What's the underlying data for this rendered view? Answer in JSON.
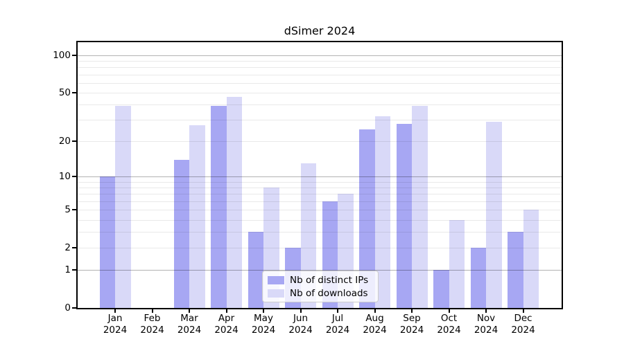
{
  "chart_data": {
    "type": "bar",
    "title": "dSimer 2024",
    "categories": [
      "Jan 2024",
      "Feb 2024",
      "Mar 2024",
      "Apr 2024",
      "May 2024",
      "Jun 2024",
      "Jul 2024",
      "Aug 2024",
      "Sep 2024",
      "Oct 2024",
      "Nov 2024",
      "Dec 2024"
    ],
    "series": [
      {
        "name": "Nb of distinct IPs",
        "color": "#a7a7f3",
        "values": [
          10,
          0,
          14,
          39,
          3,
          2,
          6,
          25,
          28,
          1,
          2,
          3
        ]
      },
      {
        "name": "Nb of downloads",
        "color": "#d9d9f8",
        "values": [
          39,
          0,
          27,
          46,
          8,
          13,
          7,
          32,
          39,
          4,
          29,
          5
        ]
      }
    ],
    "xlabel": "",
    "ylabel": "",
    "yscale": "log1p",
    "yticks": [
      0,
      1,
      2,
      5,
      10,
      20,
      50,
      100
    ],
    "ylim": [
      0,
      126
    ],
    "grid": true,
    "legend_position": "lower center inside"
  },
  "legend": {
    "items": [
      {
        "label": "Nb of distinct IPs",
        "color": "#a7a7f3"
      },
      {
        "label": "Nb of downloads",
        "color": "#d9d9f8"
      }
    ]
  }
}
